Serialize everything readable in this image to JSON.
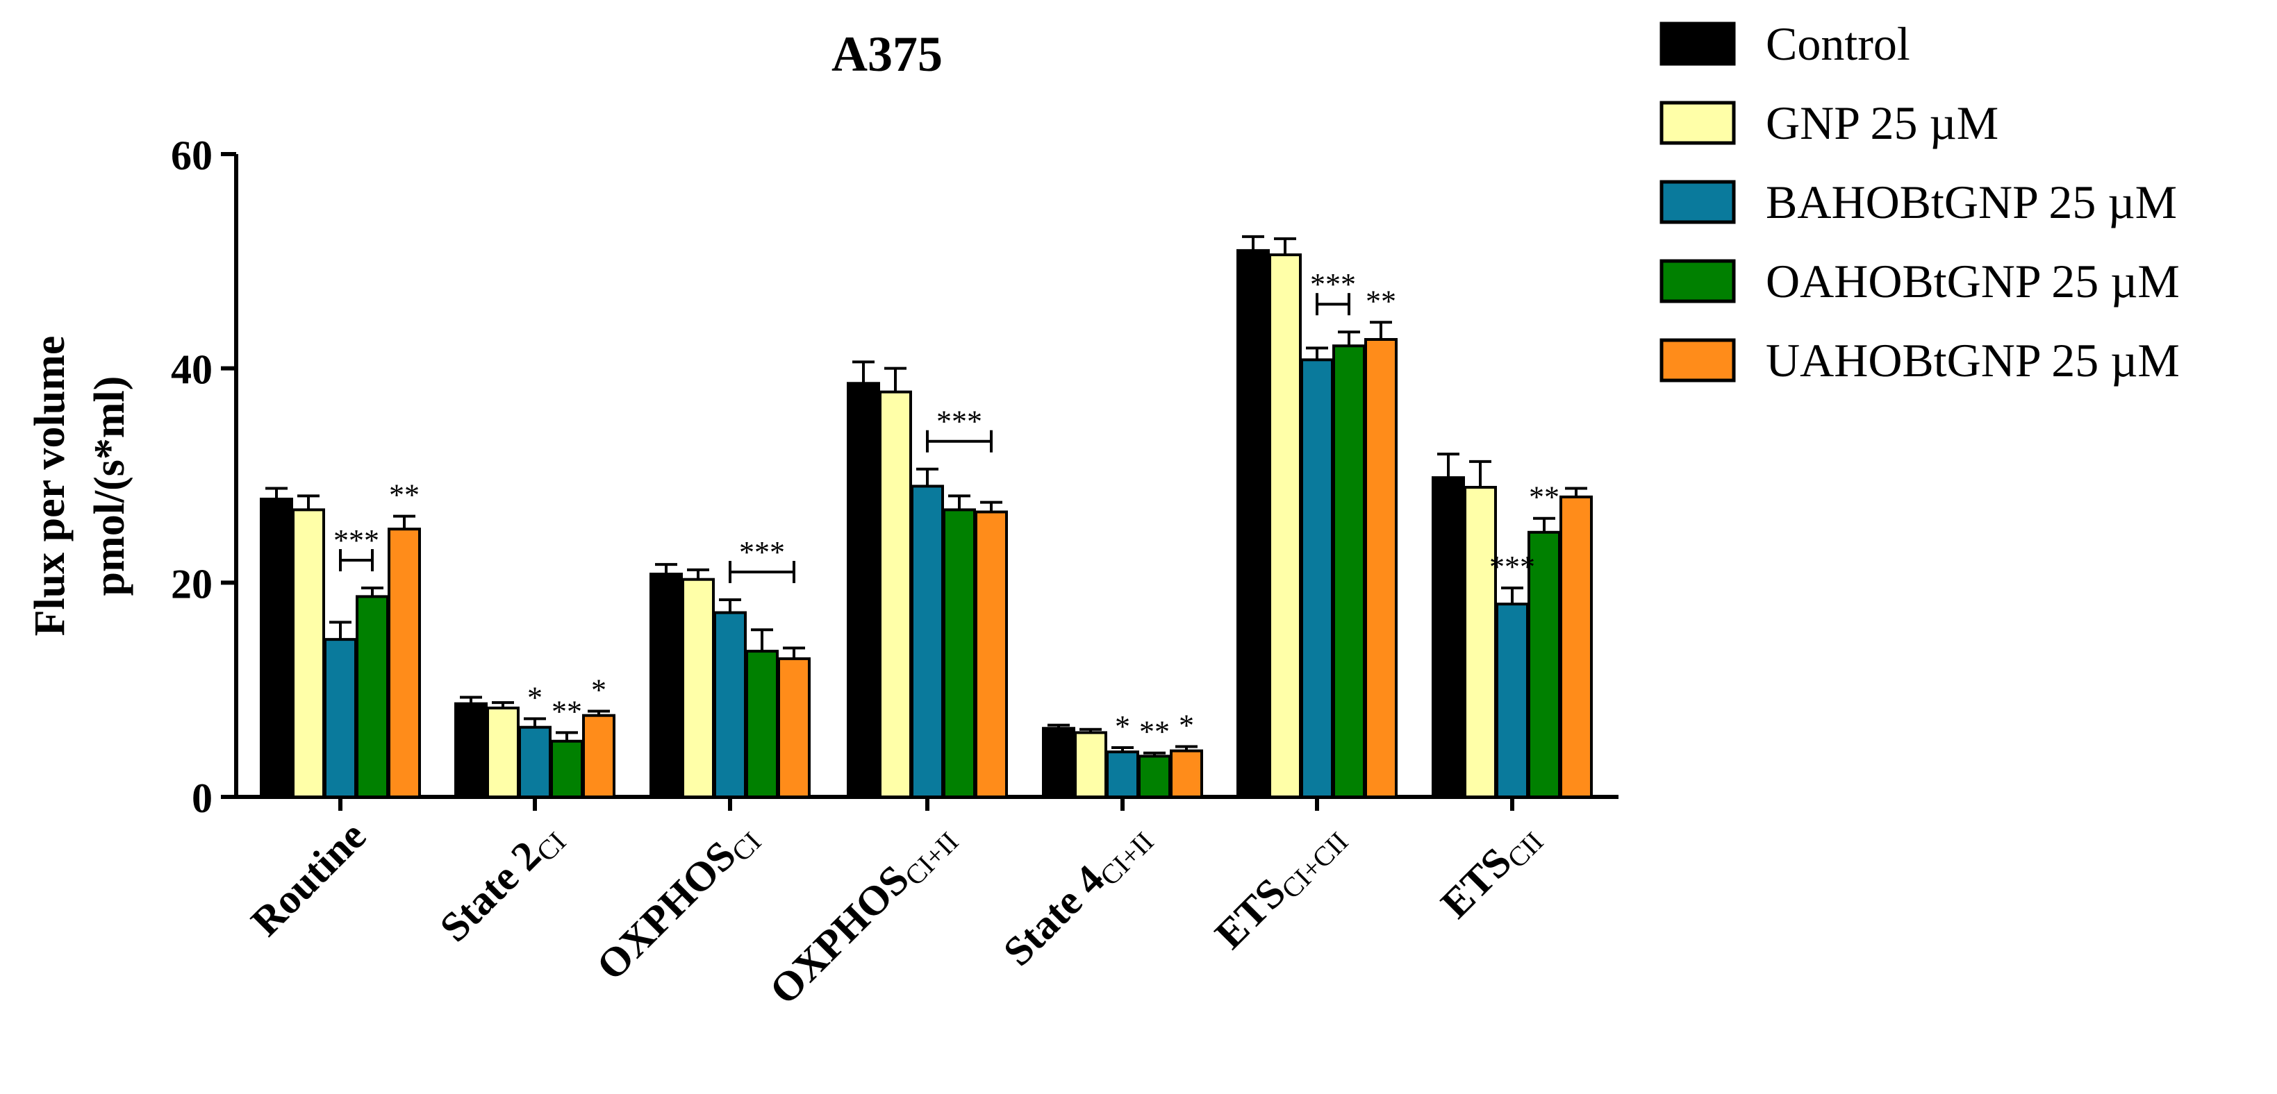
{
  "chart_data": {
    "type": "bar",
    "title": "A375",
    "ylabel_lines": [
      "Flux per volume",
      "pmol/(s*ml)"
    ],
    "xlabel": "",
    "ylim": [
      0,
      60
    ],
    "yticks": [
      "0",
      "20",
      "40",
      "60"
    ],
    "categories": [
      {
        "main": "Routine",
        "sub": ""
      },
      {
        "main": "State 2",
        "sub": "CI"
      },
      {
        "main": "OXPHOS",
        "sub": "CI"
      },
      {
        "main": "OXPHOS",
        "sub": "CI+II"
      },
      {
        "main": "State 4",
        "sub": "CI+II"
      },
      {
        "main": "ETS",
        "sub": "CI+CII"
      },
      {
        "main": "ETS",
        "sub": "CII"
      }
    ],
    "series": [
      {
        "name": "Control",
        "color": "#000000",
        "values": [
          27.8,
          8.7,
          20.8,
          38.6,
          6.4,
          51.0,
          29.8
        ],
        "errors": [
          1.0,
          0.6,
          0.9,
          2.0,
          0.3,
          1.3,
          2.2
        ]
      },
      {
        "name": "GNP 25 µM",
        "color": "#FFFFA8",
        "values": [
          26.8,
          8.3,
          20.3,
          37.8,
          6.0,
          50.6,
          28.9
        ],
        "errors": [
          1.3,
          0.5,
          0.9,
          2.2,
          0.3,
          1.5,
          2.4
        ]
      },
      {
        "name": "BAHOBtGNP 25 µM",
        "color": "#0A7A9C",
        "values": [
          14.7,
          6.5,
          17.2,
          29.0,
          4.2,
          40.8,
          18.0
        ],
        "errors": [
          1.6,
          0.8,
          1.2,
          1.6,
          0.4,
          1.1,
          1.5
        ]
      },
      {
        "name": "OAHOBtGNP 25 µM",
        "color": "#008000",
        "values": [
          18.7,
          5.2,
          13.6,
          26.8,
          3.8,
          42.1,
          24.7
        ],
        "errors": [
          0.8,
          0.8,
          2.0,
          1.3,
          0.3,
          1.3,
          1.3
        ]
      },
      {
        "name": "UAHOBtGNP 25 µM",
        "color": "#FF8C1A",
        "values": [
          25.0,
          7.6,
          12.9,
          26.6,
          4.3,
          42.7,
          28.0
        ],
        "errors": [
          1.2,
          0.4,
          1.0,
          0.9,
          0.4,
          1.6,
          0.8
        ]
      }
    ],
    "significance": {
      "Routine": {
        "bracket": "***",
        "markers": {
          "UAHOBtGNP 25 µM": "**"
        }
      },
      "State 2": {
        "markers": {
          "BAHOBtGNP 25 µM": "*",
          "OAHOBtGNP 25 µM": "**",
          "UAHOBtGNP 25 µM": "*"
        }
      },
      "OXPHOS CI": {
        "bracket": "***"
      },
      "OXPHOS CI+II": {
        "bracket": "***"
      },
      "State 4": {
        "markers": {
          "BAHOBtGNP 25 µM": "*",
          "OAHOBtGNP 25 µM": "**",
          "UAHOBtGNP 25 µM": "*"
        }
      },
      "ETS CI+CII": {
        "bracket": "***",
        "markers": {
          "UAHOBtGNP 25 µM": "**"
        }
      },
      "ETS CII": {
        "markers": {
          "BAHOBtGNP 25 µM": "***",
          "OAHOBtGNP 25 µM": "**"
        }
      }
    },
    "brackets": [
      {
        "category": 0,
        "from_series": 2,
        "to_series": 3,
        "label": "***"
      },
      {
        "category": 2,
        "from_series": 2,
        "to_series": 4,
        "label": "***"
      },
      {
        "category": 3,
        "from_series": 2,
        "to_series": 4,
        "label": "***"
      },
      {
        "category": 5,
        "from_series": 2,
        "to_series": 3,
        "label": "***"
      }
    ],
    "markers": [
      {
        "category": 0,
        "series": 4,
        "label": "**"
      },
      {
        "category": 1,
        "series": 2,
        "label": "*"
      },
      {
        "category": 1,
        "series": 3,
        "label": "**"
      },
      {
        "category": 1,
        "series": 4,
        "label": "*"
      },
      {
        "category": 4,
        "series": 2,
        "label": "*"
      },
      {
        "category": 4,
        "series": 3,
        "label": "**"
      },
      {
        "category": 4,
        "series": 4,
        "label": "*"
      },
      {
        "category": 5,
        "series": 4,
        "label": "**"
      },
      {
        "category": 6,
        "series": 2,
        "label": "***"
      },
      {
        "category": 6,
        "series": 3,
        "label": "**"
      }
    ],
    "legend_position": "top-right",
    "grid": false
  }
}
